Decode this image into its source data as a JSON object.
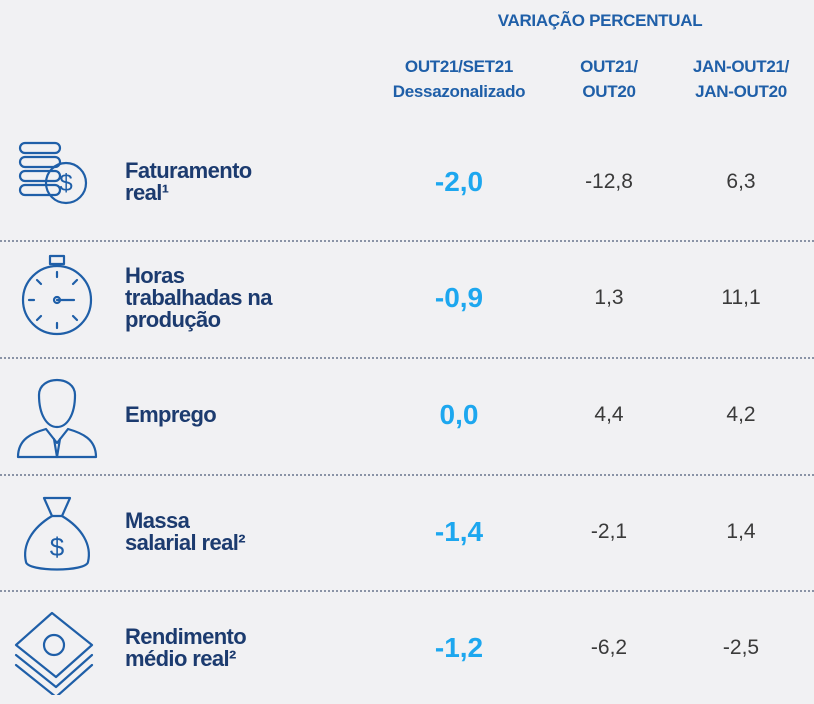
{
  "header": {
    "group": "VARIAÇÃO PERCENTUAL",
    "columns": [
      [
        "OUT21/SET21",
        "Dessazonalizado"
      ],
      [
        "OUT21/",
        "OUT20"
      ],
      [
        "JAN-OUT21/",
        "JAN-OUT20"
      ]
    ]
  },
  "table": {
    "rows": [
      {
        "label": [
          "Faturamento",
          "real¹"
        ],
        "values": [
          "-2,0",
          "-12,8",
          "6,3"
        ]
      },
      {
        "label": [
          "Horas",
          "trabalhadas na",
          "produção"
        ],
        "values": [
          "-0,9",
          "1,3",
          "11,1"
        ]
      },
      {
        "label": [
          "Emprego"
        ],
        "values": [
          "0,0",
          "4,4",
          "4,2"
        ]
      },
      {
        "label": [
          "Massa",
          "salarial real²"
        ],
        "values": [
          "-1,4",
          "-2,1",
          "1,4"
        ]
      },
      {
        "label": [
          "Rendimento",
          "médio real²"
        ],
        "values": [
          "-1,2",
          "-6,2",
          "-2,5"
        ]
      }
    ]
  }
}
